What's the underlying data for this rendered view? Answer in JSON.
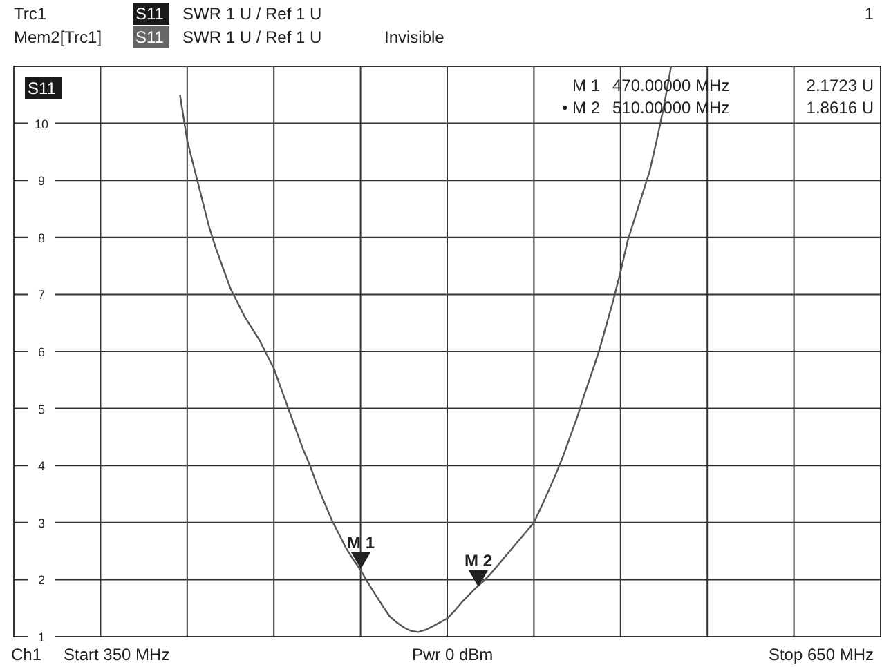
{
  "chart_data": {
    "type": "line",
    "categories": [
      null,
      null,
      null,
      null,
      null,
      null,
      null,
      null,
      null,
      null,
      null,
      null,
      null,
      null,
      null,
      null,
      null,
      null,
      null,
      null,
      null,
      null,
      null,
      null,
      null,
      null,
      null,
      null,
      null,
      null,
      null,
      null,
      null,
      null,
      null,
      null,
      null,
      null,
      null,
      null,
      null,
      null,
      null,
      null,
      null,
      null,
      null,
      null,
      null,
      null,
      null,
      null,
      null,
      null,
      null,
      null,
      null,
      null,
      null,
      null,
      null,
      null,
      null,
      null,
      null,
      null,
      null,
      null,
      null,
      null,
      null,
      null,
      null,
      null,
      null,
      null,
      null,
      null,
      null,
      null,
      null,
      null,
      null,
      null,
      null,
      null,
      null,
      null,
      null,
      null,
      null,
      null,
      null,
      null,
      null,
      null,
      null,
      null,
      null,
      null,
      null,
      null,
      null,
      null,
      null,
      null,
      null,
      null,
      null,
      null,
      null,
      null,
      null,
      null,
      null,
      null,
      null,
      null,
      null,
      null,
      null
    ],
    "series": [
      {
        "color": "#555555",
        "values": [
          null,
          null,
          null,
          null,
          null,
          null,
          null,
          null,
          null,
          null,
          null,
          null,
          null,
          null,
          null,
          null,
          null,
          null,
          null,
          null,
          null,
          null,
          null,
          10.5,
          9.7,
          9.2,
          8.7,
          8.2,
          7.8,
          7.45,
          7.1,
          6.85,
          6.6,
          6.4,
          6.2,
          5.95,
          5.7,
          5.35,
          5.0,
          4.65,
          4.3,
          4.0,
          3.65,
          3.35,
          3.05,
          2.8,
          2.55,
          2.35,
          2.17,
          1.95,
          1.75,
          1.55,
          1.36,
          1.25,
          1.16,
          1.1,
          1.08,
          1.12,
          1.18,
          1.25,
          1.32,
          1.45,
          1.6,
          1.73,
          1.86,
          1.97,
          2.1,
          2.25,
          2.4,
          2.55,
          2.7,
          2.85,
          3.0,
          3.27,
          3.55,
          3.84,
          4.15,
          4.5,
          4.85,
          5.25,
          5.62,
          6.0,
          6.45,
          6.9,
          7.4,
          7.95,
          8.35,
          8.75,
          9.15,
          9.7,
          10.3,
          11,
          null,
          null,
          null,
          null,
          null,
          null,
          null,
          null,
          null,
          null,
          null,
          null,
          null,
          null,
          null,
          null,
          null,
          null,
          null,
          null,
          null,
          null,
          null,
          null,
          null,
          null,
          null,
          null,
          null
        ]
      }
    ],
    "ylim": [
      1,
      11
    ],
    "yticks": [
      1,
      2,
      3,
      4,
      5,
      6,
      7,
      8,
      9,
      10
    ],
    "tick_labels": "y",
    "grid": true,
    "marker": "none",
    "line_style": "solid",
    "annotations": [
      "Trc1",
      "S11",
      "SWR  1 U /  Ref 1 U",
      "Mem2[Trc1]",
      "S11",
      "SWR  1 U /  Ref 1 U",
      "Invisible",
      "1",
      "S11",
      "M 1",
      "470.00000 MHz",
      "2.1723 U",
      "• M 2",
      "510.00000 MHz",
      "1.8616 U",
      "Ch1",
      "Start  350 MHz",
      "Pwr  0 dBm",
      "Stop  650 MHz",
      "M 1",
      "M 2"
    ]
  }
}
